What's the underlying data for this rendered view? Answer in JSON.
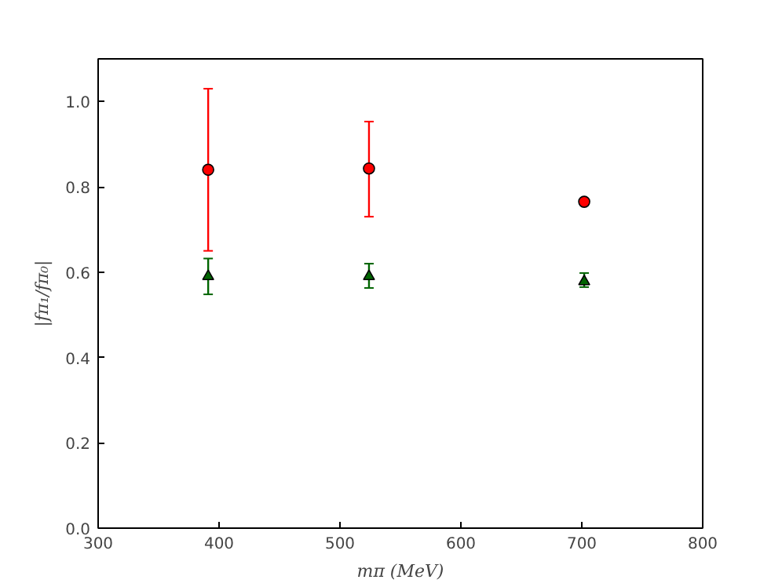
{
  "chart_data": {
    "type": "scatter",
    "xlabel": "mπ (MeV)",
    "ylabel": "|fπ₁/fπ₀|",
    "xlim": [
      300,
      800
    ],
    "ylim": [
      0,
      1.1
    ],
    "xticks": [
      300,
      400,
      500,
      600,
      700,
      800
    ],
    "yticks": [
      {
        "value": 0,
        "label": "0.0"
      },
      {
        "value": 0.2,
        "label": "0.2"
      },
      {
        "value": 0.4,
        "label": "0.4"
      },
      {
        "value": 0.6,
        "label": "0.6"
      },
      {
        "value": 0.8,
        "label": "0.8"
      },
      {
        "value": 1.0,
        "label": "1.0"
      }
    ],
    "grid": false,
    "series": [
      {
        "color": "#ff0000",
        "marker": "circle",
        "x": [
          391,
          524,
          702
        ],
        "values": [
          0.84,
          0.843,
          0.765
        ],
        "errors": [
          [
            0.65,
            1.03
          ],
          [
            0.73,
            0.953
          ],
          [
            0.758,
            0.772
          ]
        ]
      },
      {
        "color": "#006400",
        "marker": "triangle",
        "x": [
          391,
          524,
          702
        ],
        "values": [
          0.59,
          0.59,
          0.578
        ],
        "errors": [
          [
            0.548,
            0.632
          ],
          [
            0.563,
            0.62
          ],
          [
            0.565,
            0.598
          ]
        ]
      }
    ]
  }
}
